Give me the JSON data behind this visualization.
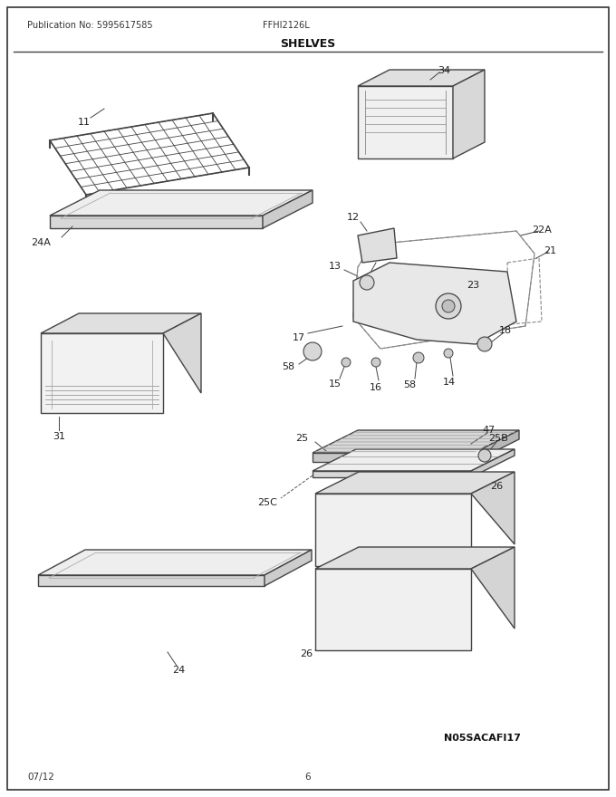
{
  "title": "SHELVES",
  "pub_no": "Publication No: 5995617585",
  "model": "FFHI2126L",
  "date": "07/12",
  "page": "6",
  "watermark": "N05SACAFI17",
  "fig_width": 6.8,
  "fig_height": 8.8,
  "dpi": 100,
  "bg_color": "#ffffff"
}
